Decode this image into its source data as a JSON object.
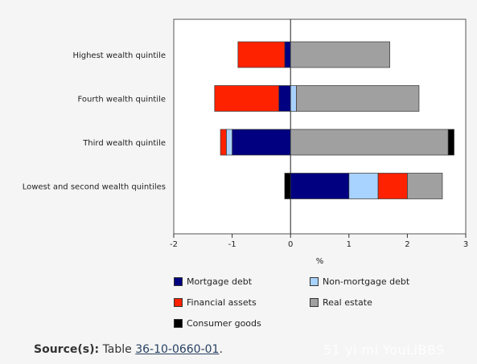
{
  "chart_data": {
    "type": "bar",
    "orientation": "horizontal",
    "stacked": true,
    "categories": [
      "Highest wealth quintile",
      "Fourth wealth quintile",
      "Third wealth quintile",
      "Lowest and second wealth quintiles"
    ],
    "series": [
      {
        "name": "Mortgage debt",
        "color": "#000080",
        "values": [
          -0.1,
          -0.2,
          -1.0,
          1.0
        ]
      },
      {
        "name": "Non-mortgage debt",
        "color": "#a8d2ff",
        "values": [
          0.0,
          0.1,
          -0.1,
          0.5
        ]
      },
      {
        "name": "Financial assets",
        "color": "#ff2200",
        "values": [
          -0.8,
          -1.1,
          -0.1,
          0.5
        ]
      },
      {
        "name": "Real estate",
        "color": "#a0a0a0",
        "values": [
          1.7,
          2.1,
          2.7,
          0.6
        ]
      },
      {
        "name": "Consumer goods",
        "color": "#000000",
        "values": [
          0.0,
          0.0,
          0.1,
          -0.1
        ]
      }
    ],
    "xlabel": "%",
    "xlim": [
      -2,
      3
    ],
    "xticks": [
      -2,
      -1,
      0,
      1,
      2,
      3
    ],
    "legend_placement": "bottom"
  },
  "source": {
    "label": "Source(s):",
    "text": "Table",
    "link": "36-10-0660-01",
    "suffix": "."
  },
  "watermark": "51 yi mi YouLiBBS"
}
